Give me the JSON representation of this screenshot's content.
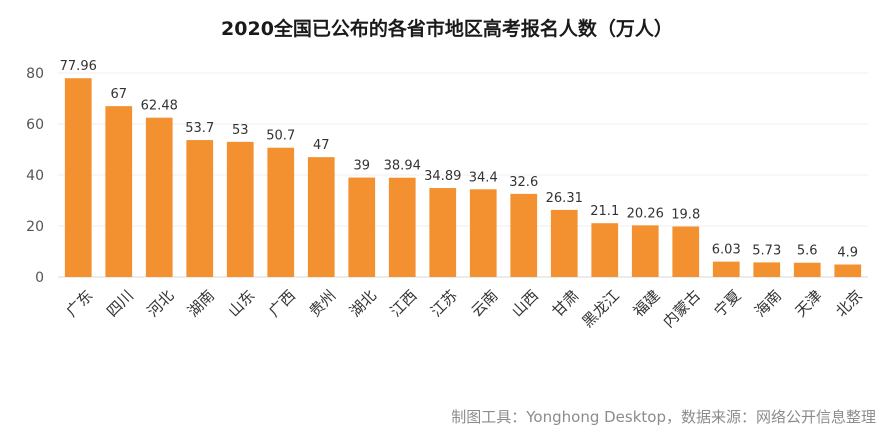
{
  "chart_data": {
    "type": "bar",
    "title": "2020全国已公布的各省市地区高考报名人数（万人）",
    "source": "制图工具：Yonghong Desktop，数据来源：网络公开信息整理",
    "categories": [
      "广东",
      "四川",
      "河北",
      "湖南",
      "山东",
      "广西",
      "贵州",
      "湖北",
      "江西",
      "江苏",
      "云南",
      "山西",
      "甘肃",
      "黑龙江",
      "福建",
      "内蒙古",
      "宁夏",
      "海南",
      "天津",
      "北京"
    ],
    "values": [
      77.96,
      67,
      62.48,
      53.7,
      53,
      50.7,
      47,
      39,
      38.94,
      34.89,
      34.4,
      32.6,
      26.31,
      21.1,
      20.26,
      19.8,
      6.03,
      5.73,
      5.6,
      4.9
    ],
    "value_labels": [
      "77.96",
      "67",
      "62.48",
      "53.7",
      "53",
      "50.7",
      "47",
      "39",
      "38.94",
      "34.89",
      "34.4",
      "32.6",
      "26.31",
      "21.1",
      "20.26",
      "19.8",
      "6.03",
      "5.73",
      "5.6",
      "4.9"
    ],
    "y_ticks": [
      "0",
      "20",
      "40",
      "60",
      "80"
    ],
    "ylim": [
      0,
      80
    ],
    "bar_color": "#f39130",
    "grid": true,
    "legend": "none"
  }
}
